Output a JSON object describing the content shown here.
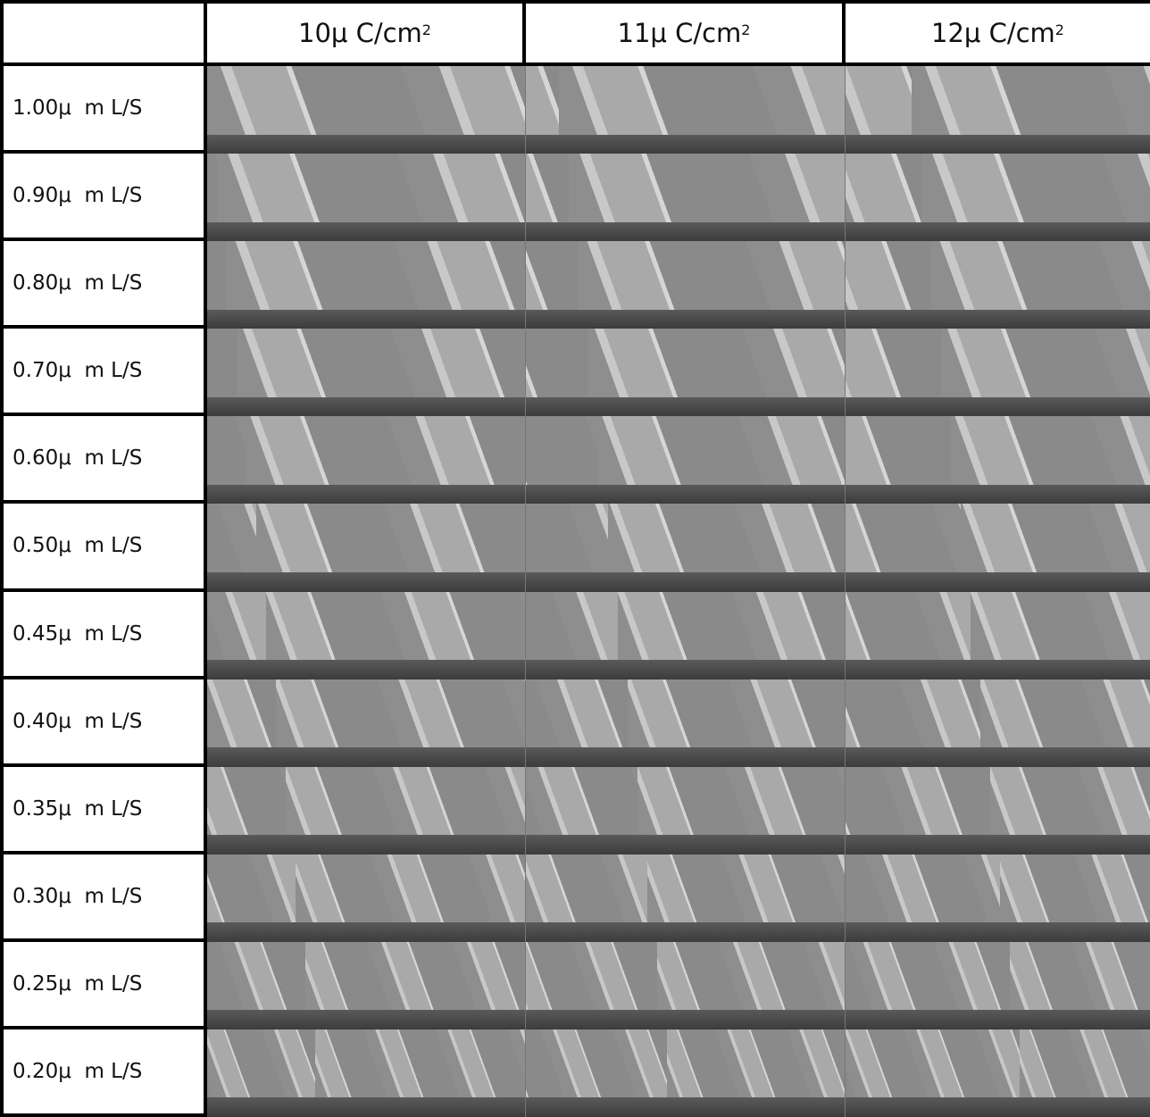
{
  "table": {
    "header": [
      {
        "text": "10μ C/cm",
        "sup": "2"
      },
      {
        "text": "11μ C/cm",
        "sup": "2"
      },
      {
        "text": "12μ C/cm",
        "sup": "2"
      }
    ],
    "rows": [
      "1.00μ  m L/S",
      "0.90μ  m L/S",
      "0.80μ  m L/S",
      "0.70μ  m L/S",
      "0.60μ  m L/S",
      "0.50μ  m L/S",
      "0.45μ  m L/S",
      "0.40μ  m L/S",
      "0.35μ  m L/S",
      "0.30μ  m L/S",
      "0.25μ  m L/S",
      "0.20μ  m L/S"
    ]
  }
}
